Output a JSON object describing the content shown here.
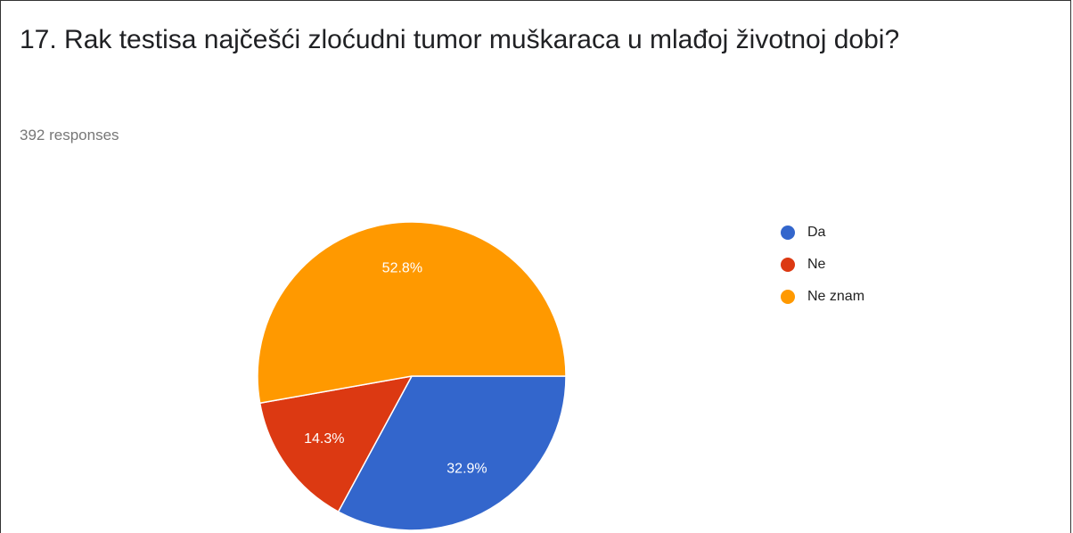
{
  "chart_data": {
    "type": "pie",
    "title": "17. Rak testisa najčešći zloćudni tumor muškaraca u mlađoj životnoj dobi?",
    "subtitle": "392 responses",
    "categories": [
      "Da",
      "Ne",
      "Ne znam"
    ],
    "values": [
      32.9,
      14.3,
      52.8
    ],
    "value_labels": [
      "32.9%",
      "14.3%",
      "52.8%"
    ],
    "colors": [
      "#3366cc",
      "#dc3912",
      "#ff9900"
    ],
    "legend": "right"
  }
}
